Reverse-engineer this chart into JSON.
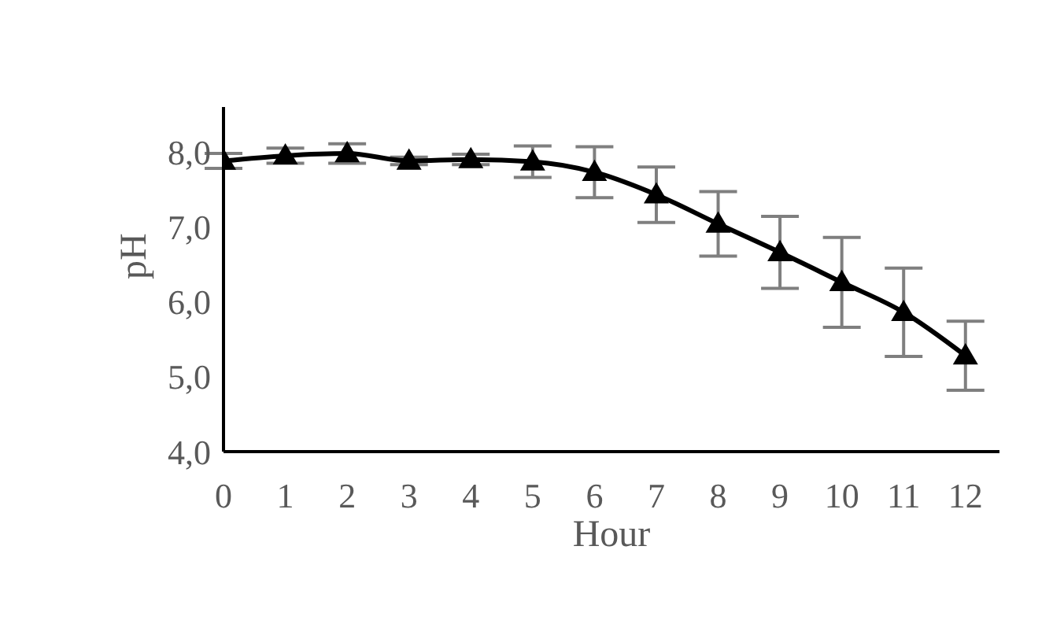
{
  "chart_data": {
    "type": "line",
    "xlabel": "Hour",
    "ylabel": "pH",
    "x": [
      0,
      1,
      2,
      3,
      4,
      5,
      6,
      7,
      8,
      9,
      10,
      11,
      12
    ],
    "series": [
      {
        "color": "#000000",
        "values": [
          7.88,
          7.95,
          7.98,
          7.88,
          7.9,
          7.87,
          7.73,
          7.43,
          7.04,
          6.66,
          6.26,
          5.86,
          5.28
        ],
        "errors": [
          0.1,
          0.1,
          0.13,
          0.05,
          0.07,
          0.21,
          0.34,
          0.37,
          0.43,
          0.48,
          0.6,
          0.59,
          0.46
        ]
      }
    ],
    "xlim": [
      0,
      12.55
    ],
    "xticks": [
      0,
      1,
      2,
      3,
      4,
      5,
      6,
      7,
      8,
      9,
      10,
      11,
      12
    ],
    "ylim": [
      4,
      8.6
    ],
    "yticks": [
      {
        "value": 4,
        "label": "4,0"
      },
      {
        "value": 5,
        "label": "5,0"
      },
      {
        "value": 6,
        "label": "6,0"
      },
      {
        "value": 7,
        "label": "7,0"
      },
      {
        "value": 8,
        "label": "8,0"
      }
    ],
    "marker": "triangle",
    "line_style": "solid",
    "grid": false,
    "legend": false
  }
}
